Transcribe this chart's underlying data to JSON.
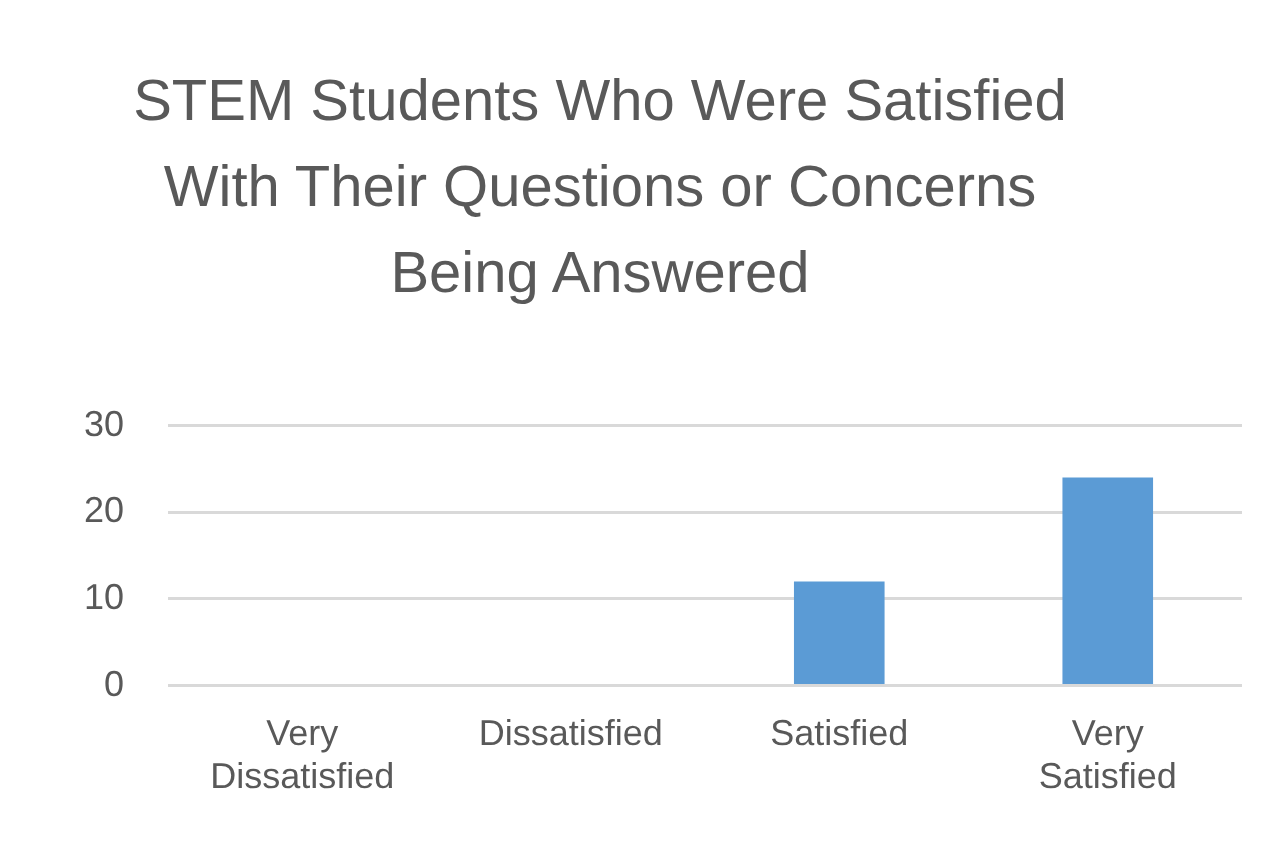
{
  "chart_data": {
    "type": "bar",
    "title": "STEM Students Who Were Satisfied With Their Questions or Concerns Being Answered",
    "categories": [
      "Very Dissatisfied",
      "Dissatisfied",
      "Satisfied",
      "Very Satisfied"
    ],
    "values": [
      0,
      0,
      12,
      24
    ],
    "color": "#5b9bd5",
    "ylim": [
      0,
      30
    ],
    "yticks": [
      0,
      10,
      20,
      30
    ],
    "grid": "y"
  }
}
